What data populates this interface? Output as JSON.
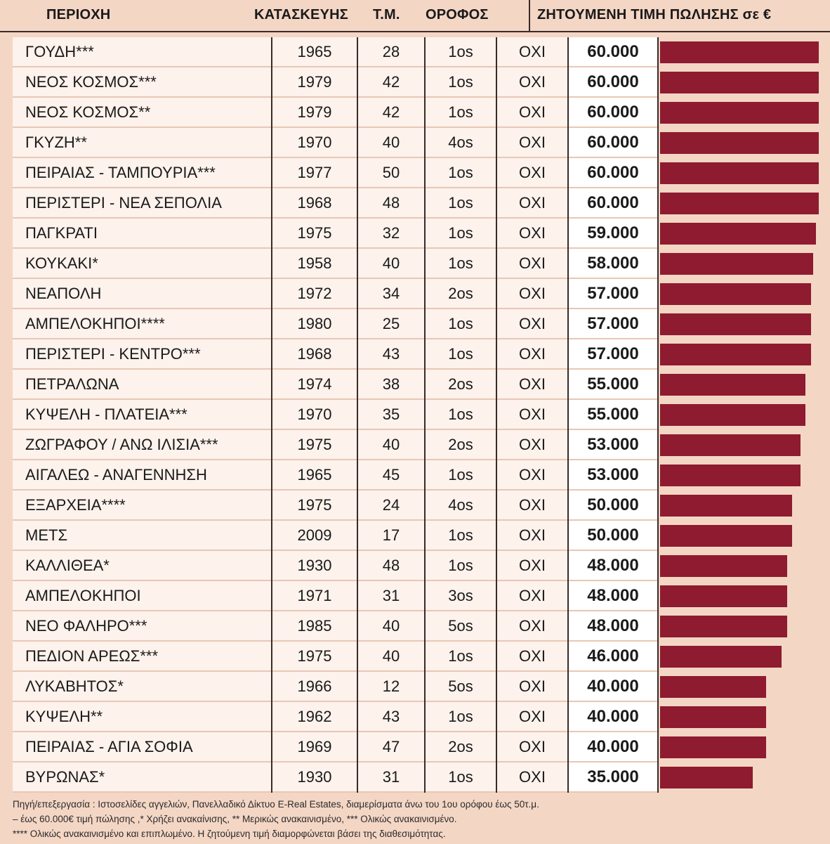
{
  "header": {
    "area": "ΠΕΡΙΟΧΗ",
    "year": "ΚΑΤΑΣΚΕΥΗΣ",
    "sqm": "Τ.Μ.",
    "floor": "ΟΡΟΦΟΣ",
    "price": "ΖΗΤΟΥΜΕΝΗ ΤΙΜΗ ΠΩΛΗΣΗΣ σε €"
  },
  "chart_data": {
    "type": "bar",
    "orientation": "horizontal",
    "value_max": 60000,
    "bar_color": "#8e1b2f",
    "rows": [
      {
        "area": "ΓΟΥΔΗ***",
        "year": "1965",
        "sqm": "28",
        "floor": "1os",
        "renovation": "ΟΧΙ",
        "price_label": "60.000",
        "price": 60000
      },
      {
        "area": "ΝΕΟΣ ΚΟΣΜΟΣ***",
        "year": "1979",
        "sqm": "42",
        "floor": "1os",
        "renovation": "ΟΧΙ",
        "price_label": "60.000",
        "price": 60000
      },
      {
        "area": "ΝΕΟΣ ΚΟΣΜΟΣ**",
        "year": "1979",
        "sqm": "42",
        "floor": "1os",
        "renovation": "ΟΧΙ",
        "price_label": "60.000",
        "price": 60000
      },
      {
        "area": "ΓΚΥΖΗ**",
        "year": "1970",
        "sqm": "40",
        "floor": "4os",
        "renovation": "ΟΧΙ",
        "price_label": "60.000",
        "price": 60000
      },
      {
        "area": "ΠΕΙΡΑΙΑΣ - ΤΑΜΠΟΥΡΙΑ***",
        "year": "1977",
        "sqm": "50",
        "floor": "1os",
        "renovation": "ΟΧΙ",
        "price_label": "60.000",
        "price": 60000
      },
      {
        "area": "ΠΕΡΙΣΤΕΡΙ - ΝΕΑ ΣΕΠΟΛΙΑ",
        "year": "1968",
        "sqm": "48",
        "floor": "1os",
        "renovation": "ΟΧΙ",
        "price_label": "60.000",
        "price": 60000
      },
      {
        "area": "ΠΑΓΚΡΑΤΙ",
        "year": "1975",
        "sqm": "32",
        "floor": "1os",
        "renovation": "ΟΧΙ",
        "price_label": "59.000",
        "price": 59000
      },
      {
        "area": "ΚΟΥΚΑΚΙ*",
        "year": "1958",
        "sqm": "40",
        "floor": "1os",
        "renovation": "ΟΧΙ",
        "price_label": "58.000",
        "price": 58000
      },
      {
        "area": "ΝΕΑΠΟΛΗ",
        "year": "1972",
        "sqm": "34",
        "floor": "2os",
        "renovation": "ΟΧΙ",
        "price_label": "57.000",
        "price": 57000
      },
      {
        "area": "ΑΜΠΕΛΟΚΗΠΟΙ****",
        "year": "1980",
        "sqm": "25",
        "floor": "1os",
        "renovation": "ΟΧΙ",
        "price_label": "57.000",
        "price": 57000
      },
      {
        "area": "ΠΕΡΙΣΤΕΡΙ - ΚΕΝΤΡΟ***",
        "year": "1968",
        "sqm": "43",
        "floor": "1os",
        "renovation": "ΟΧΙ",
        "price_label": "57.000",
        "price": 57000
      },
      {
        "area": "ΠΕΤΡΑΛΩΝΑ",
        "year": "1974",
        "sqm": "38",
        "floor": "2os",
        "renovation": "ΟΧΙ",
        "price_label": "55.000",
        "price": 55000
      },
      {
        "area": "ΚΥΨΕΛΗ - ΠΛΑΤΕΙΑ***",
        "year": "1970",
        "sqm": "35",
        "floor": "1os",
        "renovation": "ΟΧΙ",
        "price_label": "55.000",
        "price": 55000
      },
      {
        "area": "ΖΩΓΡΑΦΟΥ / ΑΝΩ ΙΛΙΣΙΑ***",
        "year": "1975",
        "sqm": "40",
        "floor": "2os",
        "renovation": "ΟΧΙ",
        "price_label": "53.000",
        "price": 53000
      },
      {
        "area": "ΑΙΓΑΛΕΩ - ΑΝΑΓΕΝΝΗΣΗ",
        "year": "1965",
        "sqm": "45",
        "floor": "1os",
        "renovation": "ΟΧΙ",
        "price_label": "53.000",
        "price": 53000
      },
      {
        "area": "ΕΞΑΡΧΕΙΑ****",
        "year": "1975",
        "sqm": "24",
        "floor": "4os",
        "renovation": "ΟΧΙ",
        "price_label": "50.000",
        "price": 50000
      },
      {
        "area": "ΜΕΤΣ",
        "year": "2009",
        "sqm": "17",
        "floor": "1os",
        "renovation": "ΟΧΙ",
        "price_label": "50.000",
        "price": 50000
      },
      {
        "area": "ΚΑΛΛΙΘΕΑ*",
        "year": "1930",
        "sqm": "48",
        "floor": "1os",
        "renovation": "ΟΧΙ",
        "price_label": "48.000",
        "price": 48000
      },
      {
        "area": "ΑΜΠΕΛΟΚΗΠΟΙ",
        "year": "1971",
        "sqm": "31",
        "floor": "3os",
        "renovation": "ΟΧΙ",
        "price_label": "48.000",
        "price": 48000
      },
      {
        "area": "ΝΕΟ ΦΑΛΗΡΟ***",
        "year": "1985",
        "sqm": "40",
        "floor": "5os",
        "renovation": "ΟΧΙ",
        "price_label": "48.000",
        "price": 48000
      },
      {
        "area": "ΠΕΔΙΟΝ ΑΡΕΩΣ***",
        "year": "1975",
        "sqm": "40",
        "floor": "1os",
        "renovation": "ΟΧΙ",
        "price_label": "46.000",
        "price": 46000
      },
      {
        "area": "ΛΥΚΑΒΗΤΟΣ*",
        "year": "1966",
        "sqm": "12",
        "floor": "5os",
        "renovation": "ΟΧΙ",
        "price_label": "40.000",
        "price": 40000
      },
      {
        "area": "ΚΥΨΕΛΗ**",
        "year": "1962",
        "sqm": "43",
        "floor": "1os",
        "renovation": "ΟΧΙ",
        "price_label": "40.000",
        "price": 40000
      },
      {
        "area": "ΠΕΙΡΑΙΑΣ - ΑΓΙΑ ΣΟΦΙΑ",
        "year": "1969",
        "sqm": "47",
        "floor": "2os",
        "renovation": "ΟΧΙ",
        "price_label": "40.000",
        "price": 40000
      },
      {
        "area": "ΒΥΡΩΝΑΣ*",
        "year": "1930",
        "sqm": "31",
        "floor": "1os",
        "renovation": "ΟΧΙ",
        "price_label": "35.000",
        "price": 35000
      }
    ]
  },
  "notes": [
    "Πηγή/επεξεργασία : Ιστοσελίδες αγγελιών, Πανελλαδικό Δίκτυο E-Real Estates, διαμερίσματα άνω του 1ου ορόφου έως 50τ.μ.",
    "– έως 60.000€ τιμή πώλησης ,* Χρήζει ανακαίνισης, ** Μερικώς ανακαινισμένο, *** Ολικώς ανακαινισμένο.",
    "**** Ολικώς ανακαινισμένο και επιπλωμένο. Η ζητούμενη τιμή διαμορφώνεται βάσει της διαθεσιμότητας."
  ]
}
